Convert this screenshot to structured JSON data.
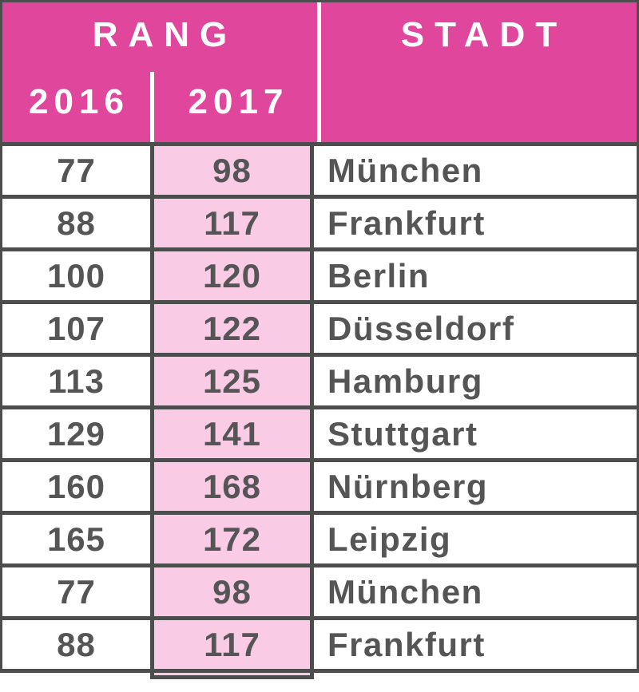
{
  "table": {
    "header": {
      "rang_label": "RANG",
      "stadt_label": "STADT",
      "year_left": "2016",
      "year_right": "2017"
    },
    "rows": [
      {
        "rank_2016": "77",
        "rank_2017": "98",
        "city": "München"
      },
      {
        "rank_2016": "88",
        "rank_2017": "117",
        "city": "Frankfurt"
      },
      {
        "rank_2016": "100",
        "rank_2017": "120",
        "city": "Berlin"
      },
      {
        "rank_2016": "107",
        "rank_2017": "122",
        "city": "Düsseldorf"
      },
      {
        "rank_2016": "113",
        "rank_2017": "125",
        "city": "Hamburg"
      },
      {
        "rank_2016": "129",
        "rank_2017": "141",
        "city": "Stuttgart"
      },
      {
        "rank_2016": "160",
        "rank_2017": "168",
        "city": "Nürnberg"
      },
      {
        "rank_2016": "165",
        "rank_2017": "172",
        "city": "Leipzig"
      },
      {
        "rank_2016": "77",
        "rank_2017": "98",
        "city": "München"
      },
      {
        "rank_2016": "88",
        "rank_2017": "117",
        "city": "Frankfurt"
      }
    ],
    "colors": {
      "header_magenta": "#E0479C",
      "column_light_pink": "#F9CBE5",
      "grid_border": "#4D4D4D",
      "body_text": "#555555",
      "header_text": "#FFFFFF"
    }
  },
  "chart_data": {
    "type": "table",
    "title": "",
    "columns": [
      "RANG 2016",
      "RANG 2017",
      "STADT"
    ],
    "rows": [
      [
        77,
        98,
        "München"
      ],
      [
        88,
        117,
        "Frankfurt"
      ],
      [
        100,
        120,
        "Berlin"
      ],
      [
        107,
        122,
        "Düsseldorf"
      ],
      [
        113,
        125,
        "Hamburg"
      ],
      [
        129,
        141,
        "Stuttgart"
      ],
      [
        160,
        168,
        "Nürnberg"
      ],
      [
        165,
        172,
        "Leipzig"
      ],
      [
        77,
        98,
        "München"
      ],
      [
        88,
        117,
        "Frankfurt"
      ]
    ]
  }
}
